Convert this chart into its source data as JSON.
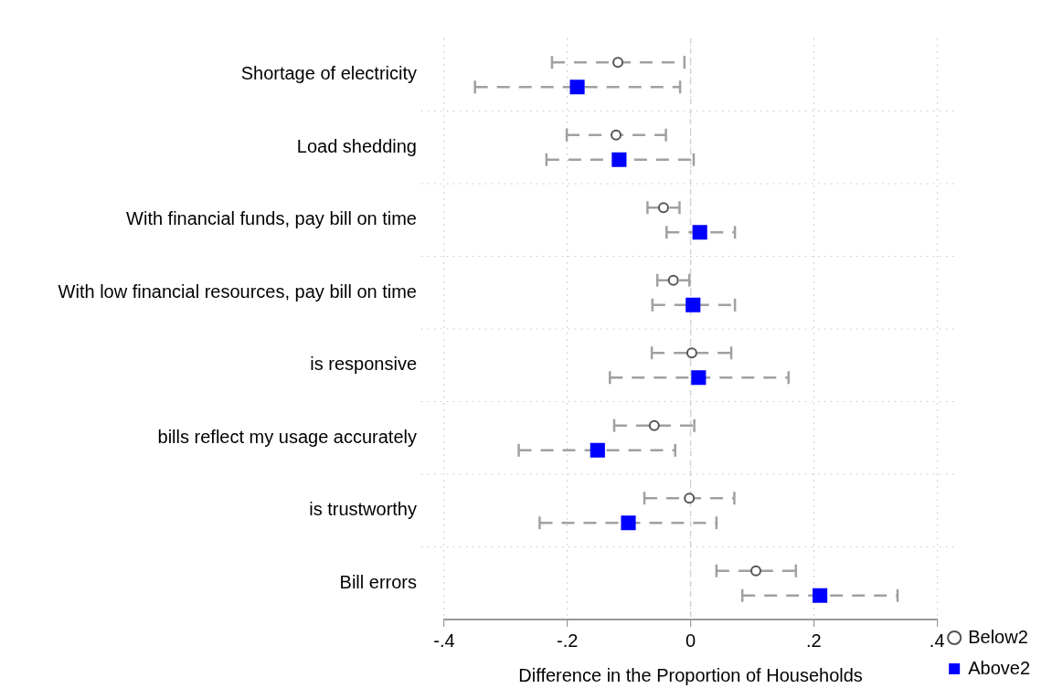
{
  "chart_data": {
    "type": "scatter",
    "orientation": "horizontal",
    "xlabel": "Difference in the Proportion of Households",
    "categories": [
      "Shortage of electricity",
      "Load shedding",
      "With financial funds, pay bill on time",
      "With low financial resources, pay bill on time",
      "is responsive",
      "bills reflect my usage accurately",
      "is trustworthy",
      "Bill errors"
    ],
    "xlim": [
      -0.4,
      0.4
    ],
    "xticks": [
      {
        "value": -0.4,
        "label": "-.4"
      },
      {
        "value": -0.2,
        "label": "-.2"
      },
      0,
      {
        "value": 0.2,
        "label": ".2"
      },
      {
        "value": 0.4,
        "label": ".4"
      }
    ],
    "grid": true,
    "legend": "bottom right",
    "ref_lines": [
      {
        "axis": "x",
        "value": 0,
        "color": "#d4d4d4",
        "line_style": "dashed"
      }
    ],
    "series": [
      {
        "name": "Below2",
        "color": "#555555",
        "marker": "circle",
        "values": [
          -0.118,
          -0.121,
          -0.044,
          -0.028,
          0.002,
          -0.059,
          -0.002,
          0.106
        ],
        "errors": [
          [
            -0.225,
            -0.01
          ],
          [
            -0.201,
            -0.04
          ],
          [
            -0.07,
            -0.018
          ],
          [
            -0.054,
            -0.002
          ],
          [
            -0.063,
            0.066
          ],
          [
            -0.124,
            0.006
          ],
          [
            -0.075,
            0.071
          ],
          [
            0.042,
            0.171
          ]
        ]
      },
      {
        "name": "Above2",
        "color": "#0000ff",
        "marker": "square",
        "values": [
          -0.184,
          -0.116,
          0.015,
          0.004,
          0.013,
          -0.151,
          -0.101,
          0.21
        ],
        "errors": [
          [
            -0.35,
            -0.017
          ],
          [
            -0.234,
            0.005
          ],
          [
            -0.039,
            0.072
          ],
          [
            -0.062,
            0.072
          ],
          [
            -0.131,
            0.159
          ],
          [
            -0.279,
            -0.025
          ],
          [
            -0.245,
            0.042
          ],
          [
            0.084,
            0.336
          ]
        ]
      }
    ]
  }
}
